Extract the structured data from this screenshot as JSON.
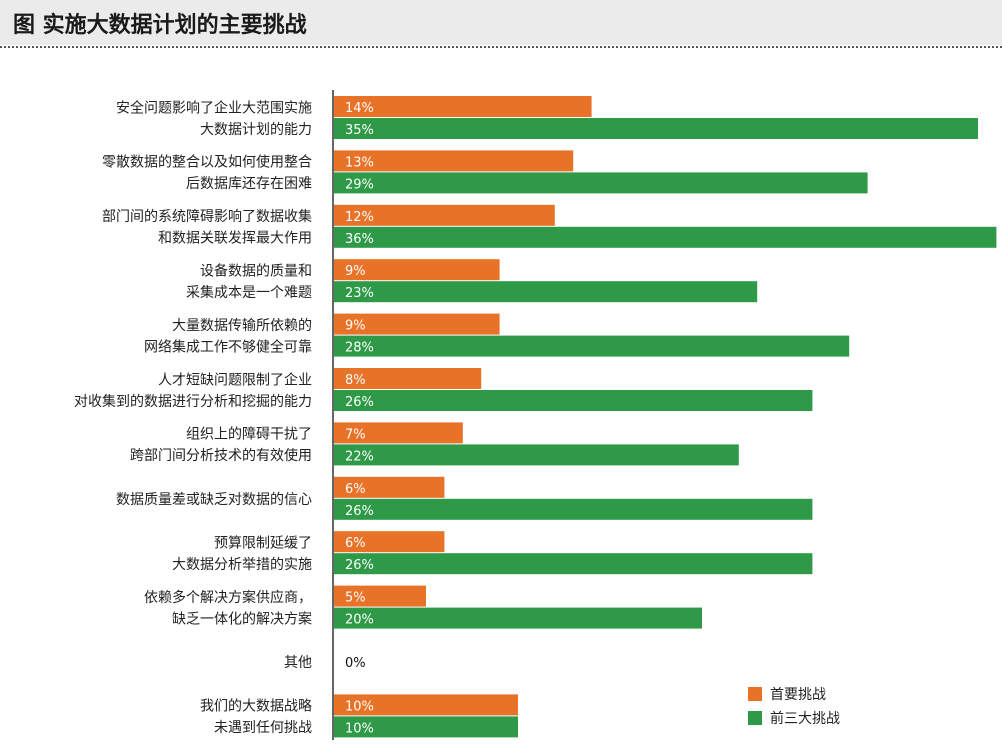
{
  "title": "图 实施大数据计划的主要挑战",
  "colors": {
    "primary": "#e87228",
    "top3": "#2e9a48",
    "axis": "#333333"
  },
  "chart_data": {
    "type": "bar",
    "orientation": "horizontal",
    "title": "图 实施大数据计划的主要挑战",
    "value_unit": "%",
    "categories": [
      [
        "安全问题影响了企业大范围实施",
        "大数据计划的能力"
      ],
      [
        "零散数据的整合以及如何使用整合",
        "后数据库还存在困难"
      ],
      [
        "部门间的系统障碍影响了数据收集",
        "和数据关联发挥最大作用"
      ],
      [
        "设备数据的质量和",
        "采集成本是一个难题"
      ],
      [
        "大量数据传输所依赖的",
        "网络集成工作不够健全可靠"
      ],
      [
        "人才短缺问题限制了企业",
        "对收集到的数据进行分析和挖掘的能力"
      ],
      [
        "组织上的障碍干扰了",
        "跨部门间分析技术的有效使用"
      ],
      [
        "数据质量差或缺乏对数据的信心"
      ],
      [
        "预算限制延缓了",
        "大数据分析举措的实施"
      ],
      [
        "依赖多个解决方案供应商，",
        "缺乏一体化的解决方案"
      ],
      [
        "其他"
      ],
      [
        "我们的大数据战略",
        "未遇到任何挑战"
      ]
    ],
    "series": [
      {
        "name": "首要挑战",
        "color": "#e87228",
        "values": [
          14,
          13,
          12,
          9,
          9,
          8,
          7,
          6,
          6,
          5,
          0,
          10
        ]
      },
      {
        "name": "前三大挑战",
        "color": "#2e9a48",
        "values": [
          35,
          29,
          36,
          23,
          28,
          26,
          22,
          26,
          26,
          20,
          null,
          10
        ]
      }
    ],
    "combined_labels": {
      "10": "0%"
    },
    "legend_position": "bottom-right",
    "grid": false
  }
}
